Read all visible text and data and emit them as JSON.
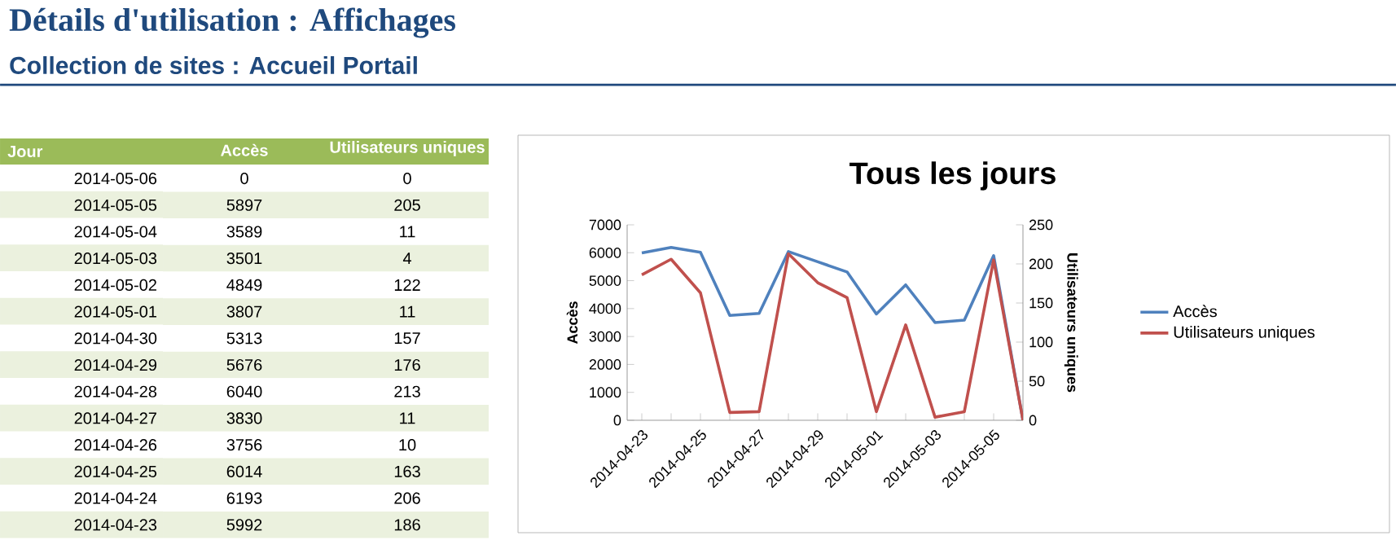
{
  "chart_data": [
    {
      "type": "heatmap",
      "title": "Détails d'utilisation : Affichages",
      "subtitle": "Collection de sites : Accueil Portail",
      "annotations": [
        "Jour"
      ],
      "data_labels": true,
      "categories": [
        "Accès",
        "Utilisateurs uniques"
      ],
      "y_categories": [
        "2014-05-06",
        "2014-05-05",
        "2014-05-04",
        "2014-05-03",
        "2014-05-02",
        "2014-05-01",
        "2014-04-30",
        "2014-04-29",
        "2014-04-28",
        "2014-04-27",
        "2014-04-26",
        "2014-04-25",
        "2014-04-24",
        "2014-04-23"
      ],
      "cells": [
        [
          0,
          0
        ],
        [
          5897,
          205
        ],
        [
          3589,
          11
        ],
        [
          3501,
          4
        ],
        [
          4849,
          122
        ],
        [
          3807,
          11
        ],
        [
          5313,
          157
        ],
        [
          5676,
          176
        ],
        [
          6040,
          213
        ],
        [
          3830,
          11
        ],
        [
          3756,
          10
        ],
        [
          6014,
          163
        ],
        [
          6193,
          206
        ],
        [
          5992,
          186
        ]
      ]
    },
    {
      "type": "line",
      "title": "Tous les jours",
      "categories": [
        "2014-04-23",
        null,
        "2014-04-25",
        null,
        "2014-04-27",
        null,
        "2014-04-29",
        null,
        "2014-05-01",
        null,
        "2014-05-03",
        null,
        "2014-05-05",
        null
      ],
      "series": [
        {
          "name": "Accès",
          "color": "#4f81bd",
          "values": [
            5992,
            6193,
            6014,
            3756,
            3830,
            6040,
            5676,
            5313,
            3807,
            4849,
            3501,
            3589,
            5897,
            0
          ]
        },
        {
          "name": "Utilisateurs uniques",
          "color": "#c0504d",
          "axis": "y2",
          "values": [
            186,
            206,
            163,
            10,
            11,
            213,
            176,
            157,
            11,
            122,
            4,
            11,
            205,
            0
          ]
        }
      ],
      "ylabel": "Accès",
      "y2label": "Utilisateurs uniques",
      "ylim": [
        0,
        7000
      ],
      "yticks": [
        0,
        1000,
        2000,
        3000,
        4000,
        5000,
        6000,
        7000
      ],
      "y2lim": [
        0,
        250
      ],
      "y2ticks": [
        0,
        50,
        100,
        150,
        200,
        250
      ],
      "legend": "right",
      "grid": false
    }
  ]
}
